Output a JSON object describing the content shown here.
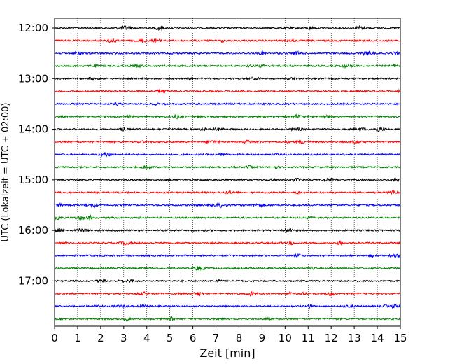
{
  "chart_data": {
    "type": "line",
    "title": "",
    "xlabel": "Zeit  [min]",
    "ylabel": "UTC (Lokalzeit = UTC + 02:00)",
    "xlim": [
      0,
      15
    ],
    "x_ticks": [
      "0",
      "1",
      "2",
      "3",
      "4",
      "5",
      "6",
      "7",
      "8",
      "9",
      "10",
      "11",
      "12",
      "13",
      "14",
      "15"
    ],
    "y_tick_labels": [
      "12:00",
      "13:00",
      "14:00",
      "15:00",
      "16:00",
      "17:00"
    ],
    "grid": "vertical dotted at each minute",
    "trace_interval_min": 15,
    "trace_color_cycle": [
      "#000000",
      "#ff0000",
      "#0000ff",
      "#008000"
    ],
    "traces": [
      {
        "start": "12:00",
        "color": "#000000"
      },
      {
        "start": "12:15",
        "color": "#ff0000"
      },
      {
        "start": "12:30",
        "color": "#0000ff"
      },
      {
        "start": "12:45",
        "color": "#008000"
      },
      {
        "start": "13:00",
        "color": "#000000"
      },
      {
        "start": "13:15",
        "color": "#ff0000"
      },
      {
        "start": "13:30",
        "color": "#0000ff"
      },
      {
        "start": "13:45",
        "color": "#008000"
      },
      {
        "start": "14:00",
        "color": "#000000"
      },
      {
        "start": "14:15",
        "color": "#ff0000"
      },
      {
        "start": "14:30",
        "color": "#0000ff"
      },
      {
        "start": "14:45",
        "color": "#008000"
      },
      {
        "start": "15:00",
        "color": "#000000"
      },
      {
        "start": "15:15",
        "color": "#ff0000"
      },
      {
        "start": "15:30",
        "color": "#0000ff"
      },
      {
        "start": "15:45",
        "color": "#008000"
      },
      {
        "start": "16:00",
        "color": "#000000"
      },
      {
        "start": "16:15",
        "color": "#ff0000"
      },
      {
        "start": "16:30",
        "color": "#0000ff"
      },
      {
        "start": "16:45",
        "color": "#008000"
      },
      {
        "start": "17:00",
        "color": "#000000"
      },
      {
        "start": "17:15",
        "color": "#ff0000"
      },
      {
        "start": "17:30",
        "color": "#0000ff"
      },
      {
        "start": "17:45",
        "color": "#008000"
      }
    ]
  }
}
